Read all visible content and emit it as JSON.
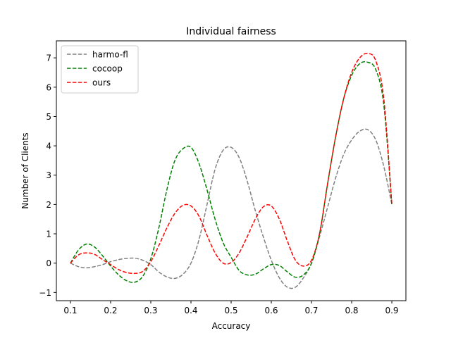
{
  "chart_data": {
    "type": "line",
    "title": "Individual fairness",
    "xlabel": "Accuracy",
    "ylabel": "Number of Clients",
    "xlim": [
      0.065,
      0.935
    ],
    "ylim": [
      -1.28,
      7.58
    ],
    "xticks": [
      0.1,
      0.2,
      0.3,
      0.4,
      0.5,
      0.6,
      0.7,
      0.8,
      0.9
    ],
    "xtick_labels": [
      "0.1",
      "0.2",
      "0.3",
      "0.4",
      "0.5",
      "0.6",
      "0.7",
      "0.8",
      "0.9"
    ],
    "yticks": [
      -1,
      0,
      1,
      2,
      3,
      4,
      5,
      6,
      7
    ],
    "ytick_labels": [
      "−1",
      "0",
      "1",
      "2",
      "3",
      "4",
      "5",
      "6",
      "7"
    ],
    "grid": false,
    "legend_position": "upper-left",
    "line_style": "dashed",
    "x": [
      0.1,
      0.12,
      0.14,
      0.16,
      0.18,
      0.2,
      0.22,
      0.24,
      0.26,
      0.28,
      0.3,
      0.32,
      0.34,
      0.36,
      0.38,
      0.4,
      0.42,
      0.44,
      0.46,
      0.48,
      0.5,
      0.52,
      0.54,
      0.56,
      0.58,
      0.6,
      0.62,
      0.64,
      0.66,
      0.68,
      0.7,
      0.72,
      0.74,
      0.76,
      0.78,
      0.8,
      0.82,
      0.84,
      0.86,
      0.88,
      0.9
    ],
    "series": [
      {
        "name": "harmo-fl",
        "color": "#808080",
        "values": [
          0.0,
          -0.12,
          -0.16,
          -0.12,
          -0.05,
          0.05,
          0.12,
          0.16,
          0.17,
          0.1,
          -0.05,
          -0.3,
          -0.47,
          -0.52,
          -0.38,
          0.0,
          0.8,
          2.0,
          3.2,
          3.85,
          3.95,
          3.6,
          2.8,
          1.8,
          0.9,
          0.1,
          -0.5,
          -0.82,
          -0.82,
          -0.5,
          0.0,
          0.9,
          1.9,
          2.9,
          3.7,
          4.2,
          4.5,
          4.55,
          4.2,
          3.3,
          2.0
        ]
      },
      {
        "name": "cocoop",
        "color": "#008000",
        "values": [
          0.0,
          0.45,
          0.65,
          0.55,
          0.25,
          -0.1,
          -0.4,
          -0.6,
          -0.65,
          -0.45,
          0.15,
          1.2,
          2.5,
          3.5,
          3.9,
          3.95,
          3.4,
          2.5,
          1.5,
          0.7,
          0.2,
          -0.25,
          -0.4,
          -0.38,
          -0.2,
          -0.05,
          -0.08,
          -0.3,
          -0.48,
          -0.4,
          0.0,
          1.0,
          2.7,
          4.3,
          5.6,
          6.4,
          6.8,
          6.85,
          6.6,
          5.4,
          2.0
        ]
      },
      {
        "name": "ours",
        "color": "#ff0000",
        "values": [
          0.0,
          0.28,
          0.35,
          0.3,
          0.12,
          -0.05,
          -0.22,
          -0.32,
          -0.35,
          -0.28,
          0.05,
          0.6,
          1.2,
          1.7,
          1.97,
          1.95,
          1.6,
          0.95,
          0.35,
          0.0,
          0.02,
          0.35,
          0.9,
          1.5,
          1.92,
          1.95,
          1.5,
          0.75,
          0.1,
          -0.1,
          0.1,
          1.0,
          2.7,
          4.3,
          5.6,
          6.5,
          7.0,
          7.15,
          6.9,
          5.6,
          2.0
        ]
      }
    ]
  }
}
